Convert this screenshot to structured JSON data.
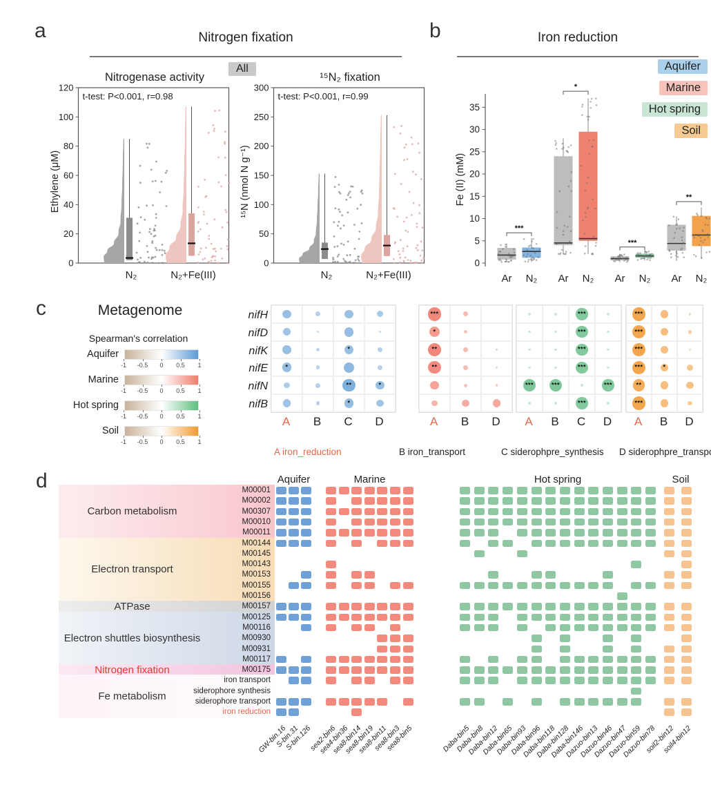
{
  "figure": {
    "labels": {
      "a": "a",
      "b": "b",
      "c": "c",
      "d": "d"
    }
  },
  "chart_data": [
    {
      "type": "violin",
      "panel": "a",
      "title": "Nitrogen fixation",
      "badge": "All",
      "subplots": [
        {
          "title": "Nitrogenase activity",
          "stat": "t-test: P<0.001, r=0.98",
          "ylabel": "Ethylene (μM)",
          "ylim": [
            0,
            120
          ],
          "yticks": [
            0,
            20,
            40,
            60,
            80,
            100,
            120
          ],
          "groups": [
            {
              "label": "N₂",
              "violin_color": "#A6A6A6",
              "box_color": "#8C8C8C",
              "point_color": "#8F8F8F",
              "max": 85,
              "whisker": [
                0,
                85
              ],
              "q1": 2,
              "median": 3.5,
              "q3": 31
            },
            {
              "label": "N₂+Fe(III)",
              "violin_color": "#EFC5C0",
              "box_color": "#DCA49E",
              "point_color": "#DFA9A4",
              "max": 107,
              "whisker": [
                0,
                107
              ],
              "q1": 5,
              "median": 13.5,
              "q3": 34
            }
          ]
        },
        {
          "title": "¹⁵N₂ fixation",
          "stat": "t-test: P<0.001, r=0.99",
          "ylabel": "¹⁵N (nmol N g⁻¹)",
          "ylim": [
            0,
            300
          ],
          "yticks": [
            0,
            50,
            100,
            150,
            200,
            250,
            300
          ],
          "groups": [
            {
              "label": "N₂",
              "violin_color": "#A6A6A6",
              "box_color": "#8C8C8C",
              "point_color": "#8F8F8F",
              "max": 153,
              "whisker": [
                0,
                153
              ],
              "q1": 7,
              "median": 24,
              "q3": 35
            },
            {
              "label": "N₂+Fe(III)",
              "violin_color": "#EFC5C0",
              "box_color": "#DCA49E",
              "point_color": "#DFA9A4",
              "max": 253,
              "whisker": [
                0,
                253
              ],
              "q1": 12,
              "median": 30,
              "q3": 48
            }
          ]
        }
      ]
    },
    {
      "type": "box",
      "panel": "b",
      "title": "Iron reduction",
      "ylabel": "Fe (II) (mM)",
      "ylim": [
        0,
        38
      ],
      "yticks": [
        0,
        5,
        10,
        15,
        20,
        25,
        30,
        35
      ],
      "legend": [
        {
          "label": "Aquifer",
          "color": "#ABD0EB"
        },
        {
          "label": "Marine",
          "color": "#F8C3BB"
        },
        {
          "label": "Hot spring",
          "color": "#C8E6D3"
        },
        {
          "label": "Soil",
          "color": "#F7C993"
        }
      ],
      "groups": [
        {
          "name": "Aquifer",
          "sig": "***",
          "sig_y": 6.8,
          "boxes": [
            {
              "label": "Ar",
              "color": "#BDBDBD",
              "lo": 0.2,
              "q1": 0.8,
              "med": 1.8,
              "q3": 3.4,
              "hi": 4.4
            },
            {
              "label": "N₂",
              "color": "#83B5E2",
              "lo": 0.3,
              "q1": 1.2,
              "med": 2.6,
              "q3": 3.5,
              "hi": 5.6
            }
          ]
        },
        {
          "name": "Marine",
          "sig": "*",
          "sig_y": 38.6,
          "boxes": [
            {
              "label": "Ar",
              "color": "#BDBDBD",
              "lo": 2,
              "q1": 4,
              "med": 4.5,
              "q3": 24,
              "hi": 28
            },
            {
              "label": "N₂",
              "color": "#F0806F",
              "lo": 2,
              "q1": 5,
              "med": 5.5,
              "q3": 29.5,
              "hi": 37
            }
          ]
        },
        {
          "name": "Hot spring",
          "sig": "***",
          "sig_y": 3.6,
          "boxes": [
            {
              "label": "Ar",
              "color": "#BDBDBD",
              "lo": 0.2,
              "q1": 0.6,
              "med": 1.0,
              "q3": 1.5,
              "hi": 2.1
            },
            {
              "label": "N₂",
              "color": "#93CBAA",
              "lo": 0.6,
              "q1": 1.2,
              "med": 1.6,
              "q3": 2.1,
              "hi": 2.7
            }
          ]
        },
        {
          "name": "Soil",
          "sig": "**",
          "sig_y": 13.8,
          "boxes": [
            {
              "label": "Ar",
              "color": "#BDBDBD",
              "lo": 0.5,
              "q1": 2.8,
              "med": 4.4,
              "q3": 8.6,
              "hi": 10.5
            },
            {
              "label": "N₂",
              "color": "#F2A24B",
              "lo": 1.0,
              "q1": 3.8,
              "med": 6.3,
              "q3": 10.6,
              "hi": 12.5
            }
          ]
        }
      ]
    },
    {
      "type": "bubble",
      "panel": "c",
      "title": "Metagenome",
      "subtitle": "Spearman's correlation",
      "scale_ticks": [
        "-1",
        "-0.5",
        "0",
        "0.5",
        "1"
      ],
      "scales": [
        {
          "label": "Aquifer",
          "color": "#5C9BD6"
        },
        {
          "label": "Marine",
          "color": "#F07D6E"
        },
        {
          "label": "Hot spring",
          "color": "#5FBF7F"
        },
        {
          "label": "Soil",
          "color": "#F29B30"
        }
      ],
      "genes": [
        "nifH",
        "nifD",
        "nifK",
        "nifE",
        "nifN",
        "nifB"
      ],
      "grids": [
        {
          "name": "Aquifer",
          "color": "#6BA3D6",
          "cols": [
            "A",
            "B",
            "C",
            "D"
          ],
          "rows": [
            [
              "0.55",
              "0.3",
              "0.55",
              "0.4"
            ],
            [
              "0.5",
              "0.12",
              "0.6",
              "0.15"
            ],
            [
              "0.55",
              "0.25",
              "0.55|*",
              "0.3"
            ],
            [
              "0.6|*",
              "0.25",
              "0.65",
              "0.3"
            ],
            [
              "0.35",
              "0.3",
              "0.8|**",
              "0.55|*"
            ],
            [
              "0.5",
              "0.25",
              "0.6|*",
              "0.45"
            ]
          ]
        },
        {
          "name": "Marine",
          "color": "#F0796B",
          "cols": [
            "A",
            "B",
            "D"
          ],
          "rows": [
            [
              "0.85|***",
              "0.3",
              "0"
            ],
            [
              "0.65|*",
              "0.22",
              "0"
            ],
            [
              "0.85|**",
              "0.3",
              "0.15"
            ],
            [
              "0.8|**",
              "0.28",
              "0.12"
            ],
            [
              "0.55",
              "0.22",
              "0.15"
            ],
            [
              "0.35",
              "0.45",
              "0.5"
            ]
          ]
        },
        {
          "name": "Hot spring",
          "color": "#68BE89",
          "cols": [
            "A",
            "B",
            "C",
            "D"
          ],
          "rows": [
            [
              "0.07",
              "0.07",
              "0.75|***",
              "0.07"
            ],
            [
              "0.07",
              "0.07",
              "0.75|***",
              "0.07"
            ],
            [
              "0.07",
              "0.07",
              "0.75|***",
              "0.07"
            ],
            [
              "0.07",
              "0.07",
              "0.75|***",
              "0.07"
            ],
            [
              "0.8|***",
              "0.8|***",
              "0.07",
              "0.75|***"
            ],
            [
              "0.07",
              "0.07",
              "0.75|***",
              "0.07"
            ]
          ]
        },
        {
          "name": "Soil",
          "color": "#F29B38",
          "cols": [
            "A",
            "B",
            "D"
          ],
          "rows": [
            [
              "0.85|***",
              "0.5",
              "0.15"
            ],
            [
              "0.85|***",
              "0.5",
              "0.25"
            ],
            [
              "0.85|***",
              "0.48",
              "0.15"
            ],
            [
              "0.85|***",
              "0.5|*",
              "0.4"
            ],
            [
              "0.75|**",
              "0.5",
              "0.45"
            ],
            [
              "0.85|***",
              "0.5",
              "0.28"
            ]
          ]
        }
      ],
      "captions": [
        {
          "key": "A",
          "text": "A iron_reduction",
          "highlight": true
        },
        {
          "key": "B",
          "text": "B iron_transport",
          "highlight": false
        },
        {
          "key": "C",
          "text": "C siderophpre_synthesis",
          "highlight": false
        },
        {
          "key": "D",
          "text": "D siderophpre_transport",
          "highlight": false
        }
      ]
    },
    {
      "type": "heatmap",
      "panel": "d",
      "groups": [
        {
          "name": "Aquifer",
          "color": "#6FA0D6",
          "bins": [
            "GW-bin.16",
            "S-bin.31",
            "S-bin.126"
          ]
        },
        {
          "name": "Marine",
          "color": "#F28B7D",
          "bins": [
            "sea2-bin6",
            "sea4-bin36",
            "sea8-bin14",
            "sea8-bin19",
            "sea8-bin11",
            "sea8-bin3",
            "sea8-bin5"
          ]
        },
        {
          "name": "Hot spring",
          "color": "#8EC7A1",
          "bins": [
            "Daba-bin5",
            "Daba-bin8",
            "Daba-bin12",
            "Daba-bin65",
            "Daba-bin93",
            "Daba-bin96",
            "Daba-bin118",
            "Daba-bin128",
            "Daba-bin146",
            "Dazuo-bin13",
            "Dazuo-bin46",
            "Dazuo-bin47",
            "Dazuo-bin59",
            "Dazuo-bin78"
          ]
        },
        {
          "name": "Soil",
          "color": "#F7C491",
          "bins": [
            "soil2-bin12",
            "soil4-bin12"
          ]
        }
      ],
      "categories": [
        {
          "name": "Carbon metabolism",
          "span": [
            0,
            4
          ],
          "bg": [
            "#fdedef",
            "#f9c6cd"
          ],
          "text_color": "#333333"
        },
        {
          "name": "Electron transport",
          "span": [
            5,
            10
          ],
          "bg": [
            "#fdf8ee",
            "#f7dcb5"
          ],
          "text_color": "#333333"
        },
        {
          "name": "ATPase",
          "span": [
            11,
            11
          ],
          "bg": [
            "#ededed",
            "#d2d2d2"
          ],
          "text_color": "#333333"
        },
        {
          "name": "Electron shuttles biosynthesis",
          "span": [
            12,
            16
          ],
          "bg": [
            "#f1f4f8",
            "#cdd7e6"
          ],
          "text_color": "#333333"
        },
        {
          "name": "Nitrogen fixation",
          "span": [
            17,
            17
          ],
          "bg": [
            "#fce9f4",
            "#f2c3dd"
          ],
          "text_color": "#e8392e"
        },
        {
          "name": "Fe metabolism",
          "span": [
            18,
            21
          ],
          "bg": [
            "#fdf3f9",
            "#fefdfe"
          ],
          "text_color": "#333333"
        }
      ],
      "rows": [
        {
          "module": "M00001",
          "red": false,
          "cells": [
            "111",
            "1111111",
            "11111111111111",
            "11"
          ]
        },
        {
          "module": "M00002",
          "red": false,
          "cells": [
            "111",
            "1011111",
            "11111111111111",
            "11"
          ]
        },
        {
          "module": "M00307",
          "red": false,
          "cells": [
            "111",
            "1111111",
            "11111111111111",
            "11"
          ]
        },
        {
          "module": "M00010",
          "red": false,
          "cells": [
            "111",
            "1011111",
            "11111111111111",
            "11"
          ]
        },
        {
          "module": "M00011",
          "red": false,
          "cells": [
            "111",
            "1111111",
            "11101111111111",
            "11"
          ]
        },
        {
          "module": "M00144",
          "red": false,
          "cells": [
            "111",
            "1010111",
            "10110111111111",
            "11"
          ]
        },
        {
          "module": "M00145",
          "red": false,
          "cells": [
            "000",
            "0000000",
            "01001000000000",
            "11"
          ]
        },
        {
          "module": "M00143",
          "red": false,
          "cells": [
            "000",
            "1000000",
            "00000000000010",
            "01"
          ]
        },
        {
          "module": "M00153",
          "red": false,
          "cells": [
            "001",
            "1011000",
            "00100110001000",
            "11"
          ]
        },
        {
          "module": "M00155",
          "red": false,
          "cells": [
            "011",
            "1011011",
            "11111111111011",
            "11"
          ]
        },
        {
          "module": "M00156",
          "red": false,
          "cells": [
            "000",
            "0000000",
            "00000000000100",
            "00"
          ]
        },
        {
          "module": "M00157",
          "red": false,
          "cells": [
            "111",
            "1111111",
            "11111111111111",
            "11"
          ]
        },
        {
          "module": "M00125",
          "red": false,
          "cells": [
            "111",
            "1111111",
            "11101111111111",
            "11"
          ]
        },
        {
          "module": "M00116",
          "red": false,
          "cells": [
            "001",
            "1011010",
            "11101011111111",
            "11"
          ]
        },
        {
          "module": "M00930",
          "red": false,
          "cells": [
            "000",
            "0000111",
            "00000101001010",
            "01"
          ]
        },
        {
          "module": "M00931",
          "red": false,
          "cells": [
            "000",
            "0000111",
            "00000101001010",
            "11"
          ]
        },
        {
          "module": "M00117",
          "red": false,
          "cells": [
            "101",
            "1111111",
            "10101101111111",
            "11"
          ]
        },
        {
          "module": "M00175",
          "red": false,
          "cells": [
            "111",
            "1111111",
            "11111111111111",
            "11"
          ]
        },
        {
          "module": "iron transport",
          "red": false,
          "cells": [
            "011",
            "1011011",
            "11101111111111",
            "11"
          ]
        },
        {
          "module": "siderophore synthesis",
          "red": false,
          "cells": [
            "000",
            "0000000",
            "00000000000010",
            "00"
          ]
        },
        {
          "module": "siderophore transport",
          "red": false,
          "cells": [
            "111",
            "1111101",
            "11010101111110",
            "11"
          ]
        },
        {
          "module": "iron reduction",
          "red": true,
          "cells": [
            "110",
            "0010000",
            "00000000000000",
            "11"
          ]
        }
      ]
    }
  ]
}
